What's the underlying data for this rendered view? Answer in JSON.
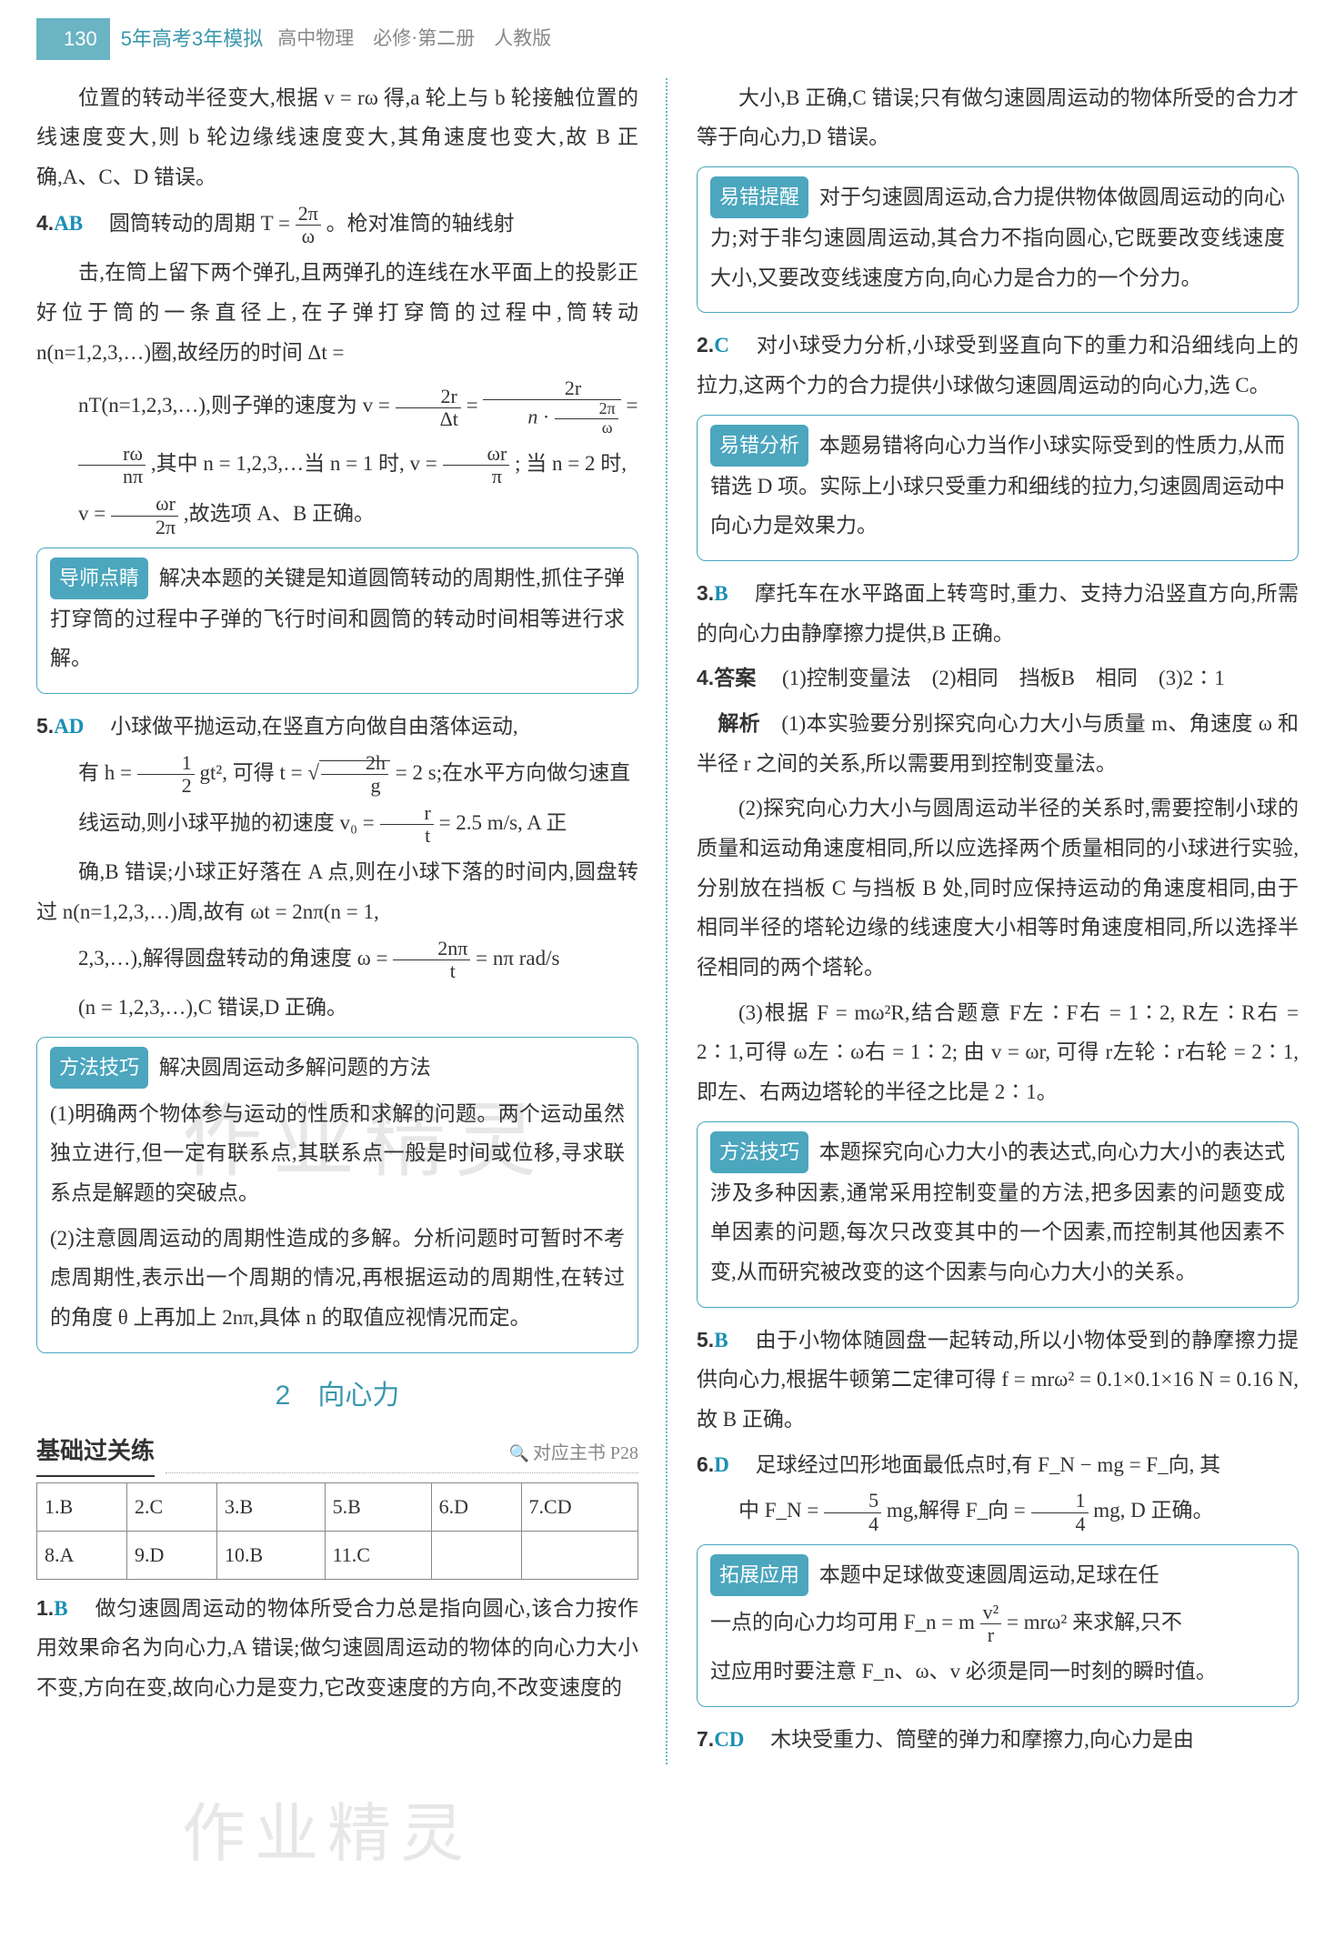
{
  "header": {
    "page_number": "130",
    "title": "5年高考3年模拟",
    "subtitle": "高中物理　必修·第二册　人教版"
  },
  "colors": {
    "accent": "#4ba6be",
    "answer": "#1a8fb5",
    "header_bar": "#6ab4c4",
    "text": "#333333",
    "muted": "#888888"
  },
  "left": {
    "intro": "位置的转动半径变大,根据 v = rω 得,a 轮上与 b 轮接触位置的线速度变大,则 b 轮边缘线速度变大,其角速度也变大,故 B 正确,A、C、D 错误。",
    "q4": {
      "num": "4.",
      "ans": "AB",
      "p1": "圆筒转动的周期 T = ",
      "frac1_num": "2π",
      "frac1_den": "ω",
      "p1b": "。枪对准筒的轴线射",
      "p2": "击,在筒上留下两个弹孔,且两弹孔的连线在水平面上的投影正好位于筒的一条直径上,在子弹打穿筒的过程中,筒转动 n(n=1,2,3,…)圈,故经历的时间 Δt =",
      "p3a": "nT(n=1,2,3,…),则子弹的速度为 v = ",
      "fr2a_num": "2r",
      "fr2a_den": "Δt",
      "p3b": " = ",
      "fr2b_num": "2r",
      "fr2b_den": "n · (2π/ω)",
      "p3c": " = ",
      "p4a": "",
      "fr3_num": "rω",
      "fr3_den": "nπ",
      "p4b": ",其中 n = 1,2,3,…当 n = 1 时, v = ",
      "fr4_num": "ωr",
      "fr4_den": "π",
      "p4c": " ; 当 n = 2 时,",
      "p5a": "v = ",
      "fr5_num": "ωr",
      "fr5_den": "2π",
      "p5b": ",故选项 A、B 正确。"
    },
    "box1": {
      "label": "导师点睛",
      "text": "解决本题的关键是知道圆筒转动的周期性,抓住子弹打穿筒的过程中子弹的飞行时间和圆筒的转动时间相等进行求解。"
    },
    "q5": {
      "num": "5.",
      "ans": "AD",
      "p1": "小球做平抛运动,在竖直方向做自由落体运动,",
      "p2a": "有 h = ",
      "fr1_num": "1",
      "fr1_den": "2",
      "p2b": " gt², 可得 t = ",
      "sqrt_inner_num": "2h",
      "sqrt_inner_den": "g",
      "p2c": " = 2 s;在水平方向做匀速直",
      "p3a": "线运动,则小球平抛的初速度 v₀ = ",
      "fr2_num": "r",
      "fr2_den": "t",
      "p3b": " = 2.5 m/s, A 正",
      "p4": "确,B 错误;小球正好落在 A 点,则在小球下落的时间内,圆盘转过 n(n=1,2,3,…)周,故有 ωt = 2nπ(n = 1,",
      "p5a": "2,3,…),解得圆盘转动的角速度 ω = ",
      "fr3_num": "2nπ",
      "fr3_den": "t",
      "p5b": " = nπ rad/s",
      "p6": "(n = 1,2,3,…),C 错误,D 正确。"
    },
    "box2": {
      "label": "方法技巧",
      "title": "解决圆周运动多解问题的方法",
      "p1": "(1)明确两个物体参与运动的性质和求解的问题。两个运动虽然独立进行,但一定有联系点,其联系点一般是时间或位移,寻求联系点是解题的突破点。",
      "p2": "(2)注意圆周运动的周期性造成的多解。分析问题时可暂时不考虑周期性,表示出一个周期的情况,再根据运动的周期性,在转过的角度 θ 上再加上 2nπ,具体 n 的取值应视情况而定。"
    },
    "section": {
      "number": "2",
      "title": "向心力"
    },
    "subsection": {
      "title": "基础过关练",
      "ref": "对应主书 P28"
    },
    "table": {
      "r1": [
        "1.B",
        "2.C",
        "3.B",
        "5.B",
        "6.D",
        "7.CD"
      ],
      "r2": [
        "8.A",
        "9.D",
        "10.B",
        "11.C",
        "",
        ""
      ]
    },
    "q1": {
      "num": "1.",
      "ans": "B",
      "text": "做匀速圆周运动的物体所受合力总是指向圆心,该合力按作用效果命名为向心力,A 错误;做匀速圆周运动的物体的向心力大小不变,方向在变,故向心力是变力,它改变速度的方向,不改变速度的"
    }
  },
  "right": {
    "cont": "大小,B 正确,C 错误;只有做匀速圆周运动的物体所受的合力才等于向心力,D 错误。",
    "box1": {
      "label": "易错提醒",
      "text": "对于匀速圆周运动,合力提供物体做圆周运动的向心力;对于非匀速圆周运动,其合力不指向圆心,它既要改变线速度大小,又要改变线速度方向,向心力是合力的一个分力。"
    },
    "q2": {
      "num": "2.",
      "ans": "C",
      "text": "对小球受力分析,小球受到竖直向下的重力和沿细线向上的拉力,这两个力的合力提供小球做匀速圆周运动的向心力,选 C。"
    },
    "box2": {
      "label": "易错分析",
      "text": "本题易错将向心力当作小球实际受到的性质力,从而错选 D 项。实际上小球只受重力和细线的拉力,匀速圆周运动中向心力是效果力。"
    },
    "q3": {
      "num": "3.",
      "ans": "B",
      "text": "摩托车在水平路面上转弯时,重力、支持力沿竖直方向,所需的向心力由静摩擦力提供,B 正确。"
    },
    "q4": {
      "num": "4.",
      "ans_label": "答案",
      "ans": "(1)控制变量法　(2)相同　挡板B　相同　(3)2∶1",
      "jx_label": "解析",
      "p1": "(1)本实验要分别探究向心力大小与质量 m、角速度 ω 和半径 r 之间的关系,所以需要用到控制变量法。",
      "p2": "(2)探究向心力大小与圆周运动半径的关系时,需要控制小球的质量和运动角速度相同,所以应选择两个质量相同的小球进行实验,分别放在挡板 C 与挡板 B 处,同时应保持运动的角速度相同,由于相同半径的塔轮边缘的线速度大小相等时角速度相同,所以选择半径相同的两个塔轮。",
      "p3": "(3)根据 F = mω²R,结合题意 F左∶F右 = 1∶2, R左∶R右 = 2∶1,可得 ω左∶ω右 = 1∶2; 由 v = ωr, 可得 r左轮∶r右轮 = 2∶1,即左、右两边塔轮的半径之比是 2∶1。"
    },
    "box3": {
      "label": "方法技巧",
      "text": "本题探究向心力大小的表达式,向心力大小的表达式涉及多种因素,通常采用控制变量的方法,把多因素的问题变成单因素的问题,每次只改变其中的一个因素,而控制其他因素不变,从而研究被改变的这个因素与向心力大小的关系。"
    },
    "q5": {
      "num": "5.",
      "ans": "B",
      "text": "由于小物体随圆盘一起转动,所以小物体受到的静摩擦力提供向心力,根据牛顿第二定律可得 f = mrω² = 0.1×0.1×16 N = 0.16 N, 故 B 正确。"
    },
    "q6": {
      "num": "6.",
      "ans": "D",
      "p1a": "足球经过凹形地面最低点时,有 F_N − mg = F_向, 其",
      "p2a": "中 F_N = ",
      "fr1_num": "5",
      "fr1_den": "4",
      "p2b": " mg,解得 F_向 = ",
      "fr2_num": "1",
      "fr2_den": "4",
      "p2c": " mg, D 正确。"
    },
    "box4": {
      "label": "拓展应用",
      "p1a": "本题中足球做变速圆周运动,足球在任",
      "p2a": "一点的向心力均可用 F_n = m ",
      "fr_num": "v²",
      "fr_den": "r",
      "p2b": " = mrω² 来求解,只不",
      "p3": "过应用时要注意 F_n、ω、v 必须是同一时刻的瞬时值。"
    },
    "q7": {
      "num": "7.",
      "ans": "CD",
      "text": "木块受重力、筒壁的弹力和摩擦力,向心力是由"
    }
  }
}
